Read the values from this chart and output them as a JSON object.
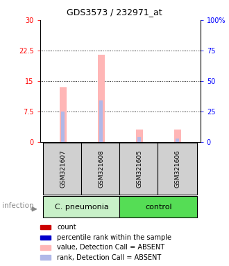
{
  "title": "GDS3573 / 232971_at",
  "samples": [
    "GSM321607",
    "GSM321608",
    "GSM321605",
    "GSM321606"
  ],
  "bar_positions": [
    0,
    1,
    2,
    3
  ],
  "value_bars": [
    13.5,
    21.5,
    3.2,
    3.2
  ],
  "rank_bars": [
    7.5,
    10.2,
    1.2,
    1.0
  ],
  "ylim_left": [
    0,
    30
  ],
  "ylim_right": [
    0,
    100
  ],
  "yticks_left": [
    0,
    7.5,
    15,
    22.5,
    30
  ],
  "ytick_labels_left": [
    "0",
    "7.5",
    "15",
    "22.5",
    "30"
  ],
  "yticks_right": [
    0,
    25,
    50,
    75,
    100
  ],
  "ytick_labels_right": [
    "0",
    "25",
    "50",
    "75",
    "100%"
  ],
  "color_value_absent": "#ffb6b6",
  "color_rank_absent": "#b0b8e8",
  "color_count": "#cc0000",
  "color_rank": "#0000cc",
  "group1_label": "C. pneumonia",
  "group2_label": "control",
  "group1_color": "#c8f0c8",
  "group2_color": "#55dd55",
  "sample_box_color": "#d0d0d0",
  "legend": [
    {
      "label": "count",
      "color": "#cc0000"
    },
    {
      "label": "percentile rank within the sample",
      "color": "#0000cc"
    },
    {
      "label": "value, Detection Call = ABSENT",
      "color": "#ffb6b6"
    },
    {
      "label": "rank, Detection Call = ABSENT",
      "color": "#b0b8e8"
    }
  ],
  "bar_width": 0.18,
  "rank_bar_width": 0.09
}
